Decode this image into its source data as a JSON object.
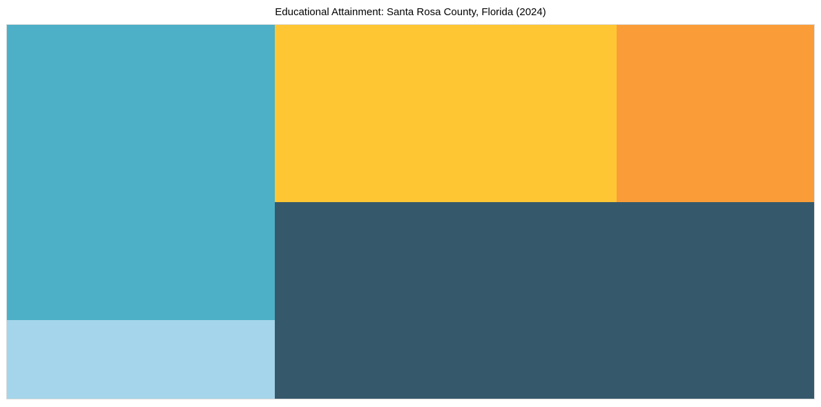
{
  "chart_data": {
    "type": "treemap",
    "title": "Educational Attainment: Santa Rosa County, Florida (2024)",
    "legend": "none",
    "labels_visible": false,
    "cells": [
      {
        "name": "treemap-cell-darkslate",
        "color": "#35596B",
        "area_pct": 35.1,
        "x_pct": 33.2,
        "y_pct": 47.5,
        "w_pct": 66.8,
        "h_pct": 52.5
      },
      {
        "name": "treemap-cell-teal",
        "color": "#4DB0C6",
        "area_pct": 26.3,
        "x_pct": 0,
        "y_pct": 0,
        "w_pct": 33.2,
        "h_pct": 79.0
      },
      {
        "name": "treemap-cell-yellow",
        "color": "#FFC634",
        "area_pct": 20.1,
        "x_pct": 33.2,
        "y_pct": 0,
        "w_pct": 42.3,
        "h_pct": 47.5
      },
      {
        "name": "treemap-cell-orange",
        "color": "#FA9D38",
        "area_pct": 11.6,
        "x_pct": 75.5,
        "y_pct": 0,
        "w_pct": 24.5,
        "h_pct": 47.5
      },
      {
        "name": "treemap-cell-lightblue",
        "color": "#A5D5EA",
        "area_pct": 6.9,
        "x_pct": 0,
        "y_pct": 79.0,
        "w_pct": 33.2,
        "h_pct": 21.0
      }
    ],
    "colors": {
      "background": "#FFFFFF",
      "plot_border": "#DCDCDC",
      "title_text": "#000000"
    }
  }
}
